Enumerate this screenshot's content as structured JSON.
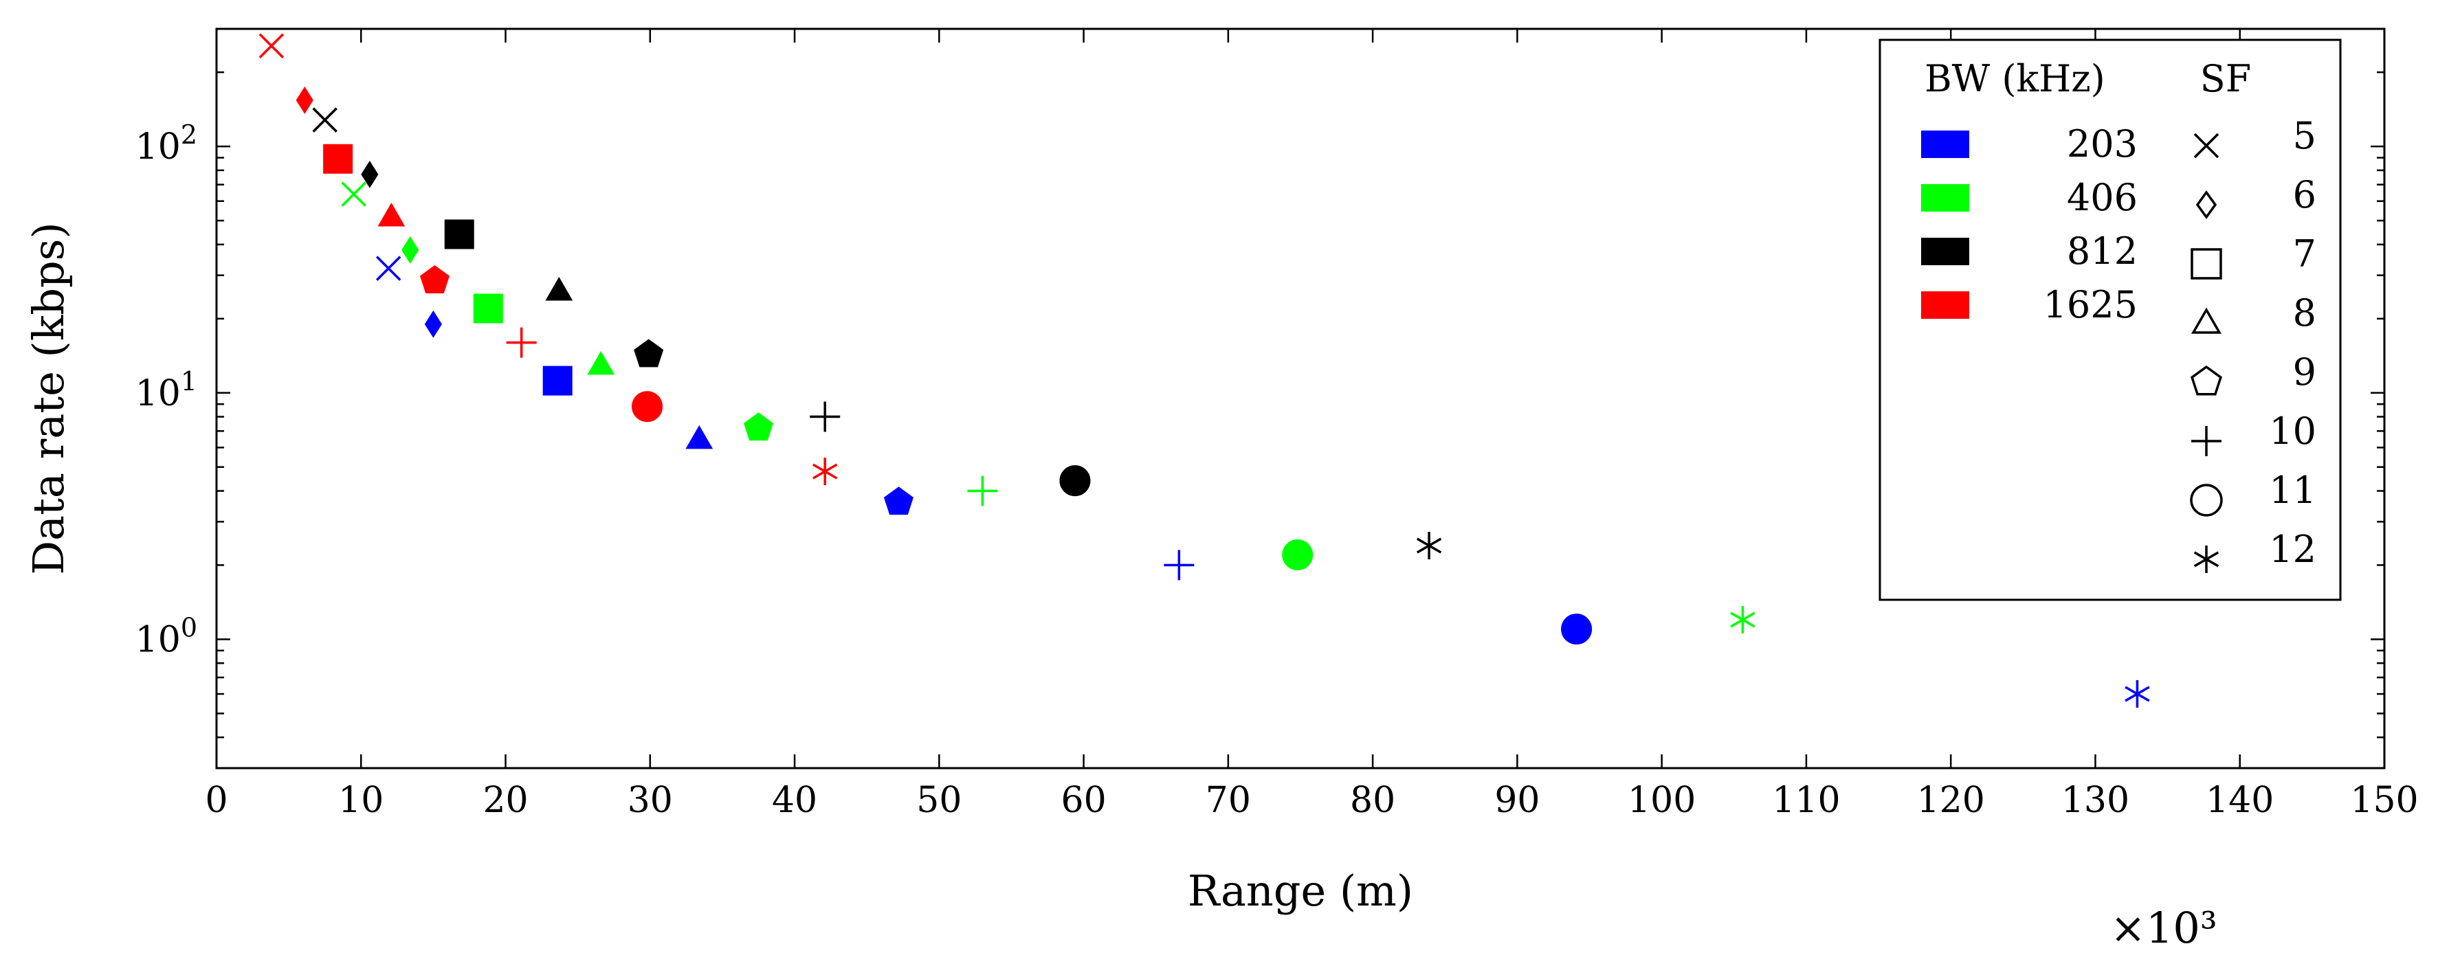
{
  "chart_data": {
    "type": "scatter",
    "title": "",
    "xlabel": "Range (m)",
    "ylabel": "Data rate (kbps)",
    "x_multiplier_label": "×10³",
    "xscale": "linear",
    "yscale": "log",
    "xlim": [
      0,
      150
    ],
    "ylim": [
      0.3,
      300
    ],
    "x_ticks": [
      0,
      10,
      20,
      30,
      40,
      50,
      60,
      70,
      80,
      90,
      100,
      110,
      120,
      130,
      140,
      150
    ],
    "x_tick_labels": [
      "0",
      "10",
      "20",
      "30",
      "40",
      "50",
      "60",
      "70",
      "80",
      "90",
      "100",
      "110",
      "120",
      "130",
      "140",
      "150"
    ],
    "y_ticks": [
      1,
      10,
      100
    ],
    "y_tick_labels": [
      {
        "base": "10",
        "exp": "0"
      },
      {
        "base": "10",
        "exp": "1"
      },
      {
        "base": "10",
        "exp": "2"
      }
    ],
    "legend": {
      "position": "top-right",
      "bw_header": "BW (kHz)",
      "sf_header": "SF",
      "bw_entries": [
        {
          "label": "203",
          "color": "#0000ff"
        },
        {
          "label": "406",
          "color": "#00ff00"
        },
        {
          "label": "812",
          "color": "#000000"
        },
        {
          "label": "1625",
          "color": "#ff0000"
        }
      ],
      "sf_entries": [
        {
          "label": "5",
          "marker": "cross-icon"
        },
        {
          "label": "6",
          "marker": "diamond-icon"
        },
        {
          "label": "7",
          "marker": "square-icon"
        },
        {
          "label": "8",
          "marker": "triangle-icon"
        },
        {
          "label": "9",
          "marker": "pentagon-icon"
        },
        {
          "label": "10",
          "marker": "plus-icon"
        },
        {
          "label": "11",
          "marker": "circle-icon"
        },
        {
          "label": "12",
          "marker": "asterisk-icon"
        }
      ]
    },
    "series": [
      {
        "name": "203",
        "color": "#0000ff",
        "points": [
          {
            "sf": 5,
            "x": 11.9,
            "y": 32
          },
          {
            "sf": 6,
            "x": 15.0,
            "y": 19
          },
          {
            "sf": 7,
            "x": 23.6,
            "y": 11.2
          },
          {
            "sf": 8,
            "x": 33.4,
            "y": 6.5
          },
          {
            "sf": 9,
            "x": 47.2,
            "y": 3.6
          },
          {
            "sf": 10,
            "x": 66.6,
            "y": 2.0
          },
          {
            "sf": 11,
            "x": 94.1,
            "y": 1.1
          },
          {
            "sf": 12,
            "x": 132.9,
            "y": 0.6
          }
        ]
      },
      {
        "name": "406",
        "color": "#00ff00",
        "points": [
          {
            "sf": 5,
            "x": 9.5,
            "y": 64
          },
          {
            "sf": 6,
            "x": 13.4,
            "y": 38
          },
          {
            "sf": 7,
            "x": 18.8,
            "y": 22
          },
          {
            "sf": 8,
            "x": 26.6,
            "y": 13
          },
          {
            "sf": 9,
            "x": 37.5,
            "y": 7.2
          },
          {
            "sf": 10,
            "x": 53.0,
            "y": 4.0
          },
          {
            "sf": 11,
            "x": 74.8,
            "y": 2.2
          },
          {
            "sf": 12,
            "x": 105.6,
            "y": 1.2
          }
        ]
      },
      {
        "name": "812",
        "color": "#000000",
        "points": [
          {
            "sf": 5,
            "x": 7.5,
            "y": 128
          },
          {
            "sf": 6,
            "x": 10.6,
            "y": 77
          },
          {
            "sf": 7,
            "x": 16.8,
            "y": 44
          },
          {
            "sf": 8,
            "x": 23.7,
            "y": 26
          },
          {
            "sf": 9,
            "x": 29.9,
            "y": 14.3
          },
          {
            "sf": 10,
            "x": 42.1,
            "y": 8.0
          },
          {
            "sf": 11,
            "x": 59.4,
            "y": 4.4
          },
          {
            "sf": 12,
            "x": 83.9,
            "y": 2.4
          }
        ]
      },
      {
        "name": "1625",
        "color": "#ff0000",
        "points": [
          {
            "sf": 5,
            "x": 3.8,
            "y": 256
          },
          {
            "sf": 6,
            "x": 6.1,
            "y": 154
          },
          {
            "sf": 7,
            "x": 8.4,
            "y": 89
          },
          {
            "sf": 8,
            "x": 12.1,
            "y": 52
          },
          {
            "sf": 9,
            "x": 15.1,
            "y": 28.5
          },
          {
            "sf": 10,
            "x": 21.1,
            "y": 16
          },
          {
            "sf": 11,
            "x": 29.8,
            "y": 8.8
          },
          {
            "sf": 12,
            "x": 42.1,
            "y": 4.8
          }
        ]
      }
    ]
  }
}
